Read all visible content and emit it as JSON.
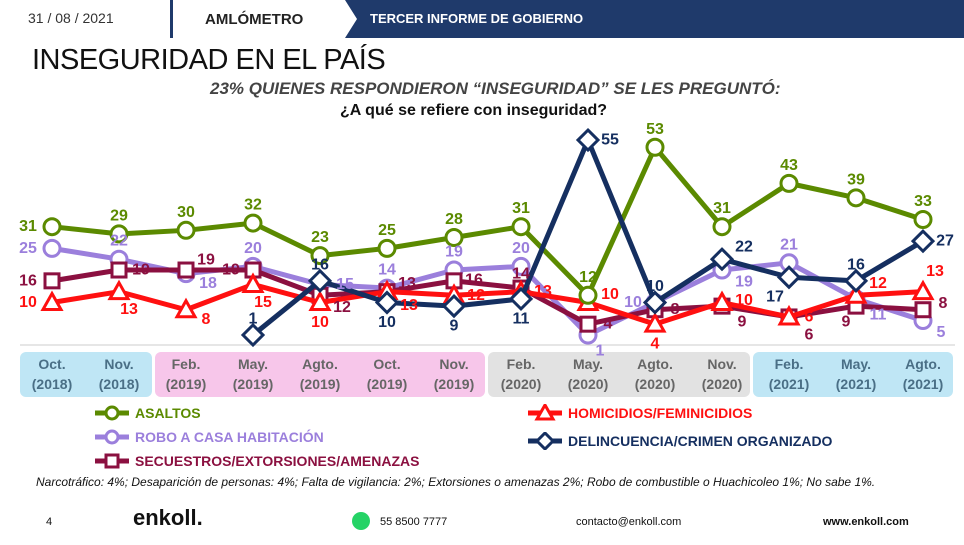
{
  "header": {
    "date": "31 / 08 / 2021",
    "section": "AMLÓMETRO",
    "report": "TERCER INFORME DE GOBIERNO"
  },
  "title": "INSEGURIDAD EN EL PAÍS",
  "subtitle": "23% QUIENES RESPONDIERON “INSEGURIDAD” SE LES PREGUNTÓ:",
  "question": "¿A qué se refiere con inseguridad?",
  "chart_data": {
    "type": "line",
    "categories": [
      [
        "Oct.",
        "(2018)"
      ],
      [
        "Nov.",
        "(2018)"
      ],
      [
        "Feb.",
        "(2019)"
      ],
      [
        "May.",
        "(2019)"
      ],
      [
        "Agto.",
        "(2019)"
      ],
      [
        "Oct.",
        "(2019)"
      ],
      [
        "Nov.",
        "(2019)"
      ],
      [
        "Feb.",
        "(2020)"
      ],
      [
        "May.",
        "(2020)"
      ],
      [
        "Agto.",
        "(2020)"
      ],
      [
        "Nov.",
        "(2020)"
      ],
      [
        "Feb.",
        "(2021)"
      ],
      [
        "May.",
        "(2021)"
      ],
      [
        "Agto.",
        "(2021)"
      ]
    ],
    "ylim": [
      0,
      56
    ],
    "series": [
      {
        "name": "ASALTOS",
        "color": "#5b8a00",
        "marker": "circle",
        "values": [
          31,
          29,
          30,
          32,
          23,
          25,
          28,
          31,
          12,
          53,
          31,
          43,
          39,
          33
        ]
      },
      {
        "name": "ROBO A CASA HABITACIÓN",
        "color": "#9b7fdc",
        "marker": "circle",
        "values": [
          25,
          22,
          18,
          20,
          15,
          14,
          19,
          20,
          1,
          10,
          19,
          21,
          11,
          5
        ]
      },
      {
        "name": "SECUESTROS/EXTORSIONES/AMENAZAS",
        "color": "#8b1040",
        "marker": "square",
        "values": [
          16,
          19,
          19,
          19,
          12,
          13,
          16,
          14,
          4,
          8,
          9,
          6,
          9,
          8
        ]
      },
      {
        "name": "HOMICIDIOS/FEMINICIDIOS",
        "color": "#ff1010",
        "marker": "triangle",
        "values": [
          10,
          13,
          8,
          15,
          10,
          13,
          12,
          13,
          10,
          4,
          10,
          6,
          12,
          13
        ]
      },
      {
        "name": "DELINCUENCIA/CRIMEN ORGANIZADO",
        "color": "#152f60",
        "marker": "diamond",
        "values": [
          null,
          null,
          null,
          1,
          16,
          10,
          9,
          11,
          55,
          10,
          22,
          17,
          16,
          27
        ]
      }
    ]
  },
  "note": "Narcotráfico: 4%; Desaparición de personas: 4%; Falta de vigilancia: 2%; Extorsiones o amenazas 2%; Robo de combustible o Huachicoleo 1%; No sabe 1%.",
  "footer": {
    "page": "4",
    "logo": "enkoll.",
    "phone": "55 8500 7777",
    "email": "contacto@enkoll.com",
    "web": "www.enkoll.com"
  }
}
